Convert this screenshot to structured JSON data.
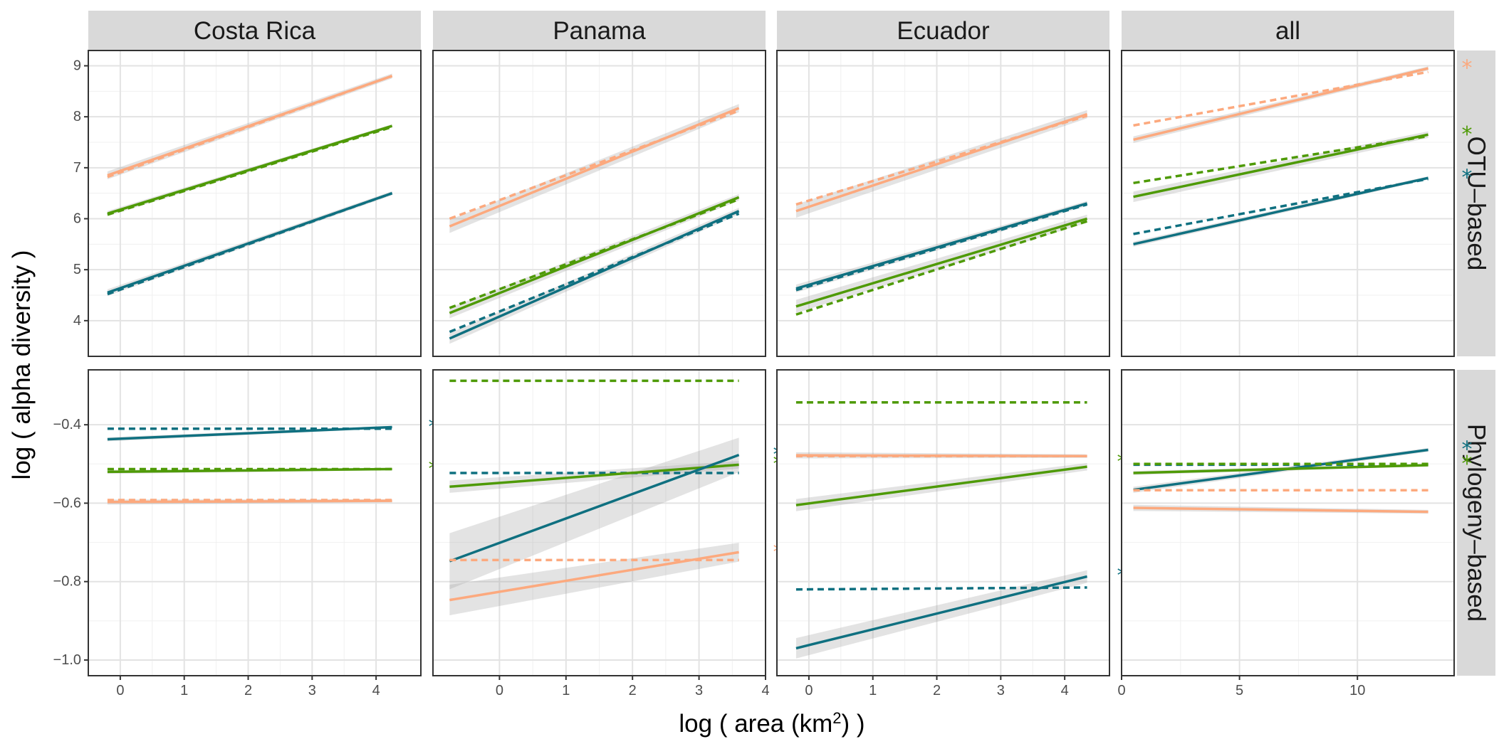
{
  "chart_data": {
    "type": "line",
    "xlabel": "log ( area (km2) )",
    "xlabel_parts": {
      "before": "log ( area (km",
      "sup": "2",
      "after": ") )"
    },
    "ylabel": "log ( alpha diversity )",
    "columns": [
      "Costa Rica",
      "Panama",
      "Ecuador",
      "all"
    ],
    "rows": [
      "OTU–based",
      "Phylogeny–based"
    ],
    "x_ticks": [
      [
        0,
        1,
        2,
        3,
        4
      ],
      [
        0,
        1,
        2,
        3,
        4
      ],
      [
        0,
        1,
        2,
        3,
        4
      ],
      [
        0,
        5,
        10
      ]
    ],
    "x_ranges": [
      [
        -0.5,
        4.7
      ],
      [
        -1.0,
        4.0
      ],
      [
        -0.5,
        4.7
      ],
      [
        0,
        14.1
      ]
    ],
    "y_ticks": [
      [
        4,
        5,
        6,
        7,
        8,
        9
      ],
      [
        -1.0,
        -0.8,
        -0.6,
        -0.4
      ]
    ],
    "y_tick_labels": [
      [
        "4",
        "5",
        "6",
        "7",
        "8",
        "9"
      ],
      [
        "−1.0",
        "−0.8",
        "−0.6",
        "−0.4"
      ]
    ],
    "y_ranges": [
      [
        3.3,
        9.3
      ],
      [
        -1.04,
        -0.26
      ]
    ],
    "grid": true,
    "series_colors": {
      "orange": "#fca97e",
      "green": "#4e9a06",
      "teal": "#0f7080"
    },
    "significance_marker": "*",
    "panels": [
      {
        "row": 0,
        "col": 0,
        "lines": [
          {
            "series": "orange",
            "style": "solid",
            "x": [
              -0.2,
              4.25
            ],
            "y": [
              6.85,
              8.8
            ],
            "ci": 0.06
          },
          {
            "series": "orange",
            "style": "dashed",
            "x": [
              -0.2,
              4.25
            ],
            "y": [
              6.82,
              8.8
            ]
          },
          {
            "series": "green",
            "style": "solid",
            "x": [
              -0.2,
              4.25
            ],
            "y": [
              6.1,
              7.82
            ],
            "ci": 0.04
          },
          {
            "series": "green",
            "style": "dashed",
            "x": [
              -0.2,
              4.25
            ],
            "y": [
              6.08,
              7.8
            ]
          },
          {
            "series": "teal",
            "style": "solid",
            "x": [
              -0.2,
              4.25
            ],
            "y": [
              4.55,
              6.5
            ],
            "ci": 0.05
          },
          {
            "series": "teal",
            "style": "dashed",
            "x": [
              -0.2,
              4.25
            ],
            "y": [
              4.52,
              6.5
            ]
          }
        ],
        "markers": []
      },
      {
        "row": 0,
        "col": 1,
        "lines": [
          {
            "series": "orange",
            "style": "solid",
            "x": [
              -0.75,
              3.6
            ],
            "y": [
              5.85,
              8.17
            ],
            "ci": 0.1
          },
          {
            "series": "orange",
            "style": "dashed",
            "x": [
              -0.75,
              3.6
            ],
            "y": [
              6.0,
              8.12
            ]
          },
          {
            "series": "green",
            "style": "solid",
            "x": [
              -0.75,
              3.6
            ],
            "y": [
              4.15,
              6.42
            ],
            "ci": 0.08
          },
          {
            "series": "green",
            "style": "dashed",
            "x": [
              -0.75,
              3.6
            ],
            "y": [
              4.25,
              6.38
            ]
          },
          {
            "series": "teal",
            "style": "solid",
            "x": [
              -0.75,
              3.6
            ],
            "y": [
              3.65,
              6.15
            ],
            "ci": 0.08
          },
          {
            "series": "teal",
            "style": "dashed",
            "x": [
              -0.75,
              3.6
            ],
            "y": [
              3.78,
              6.1
            ]
          }
        ],
        "markers": []
      },
      {
        "row": 0,
        "col": 2,
        "lines": [
          {
            "series": "orange",
            "style": "solid",
            "x": [
              -0.2,
              4.35
            ],
            "y": [
              6.15,
              8.05
            ],
            "ci": 0.1
          },
          {
            "series": "orange",
            "style": "dashed",
            "x": [
              -0.2,
              4.35
            ],
            "y": [
              6.28,
              8.02
            ]
          },
          {
            "series": "teal",
            "style": "solid",
            "x": [
              -0.2,
              4.35
            ],
            "y": [
              4.63,
              6.3
            ],
            "ci": 0.06
          },
          {
            "series": "teal",
            "style": "dashed",
            "x": [
              -0.2,
              4.35
            ],
            "y": [
              4.6,
              6.28
            ]
          },
          {
            "series": "green",
            "style": "solid",
            "x": [
              -0.2,
              4.35
            ],
            "y": [
              4.28,
              6.0
            ],
            "ci": 0.1
          },
          {
            "series": "green",
            "style": "dashed",
            "x": [
              -0.2,
              4.35
            ],
            "y": [
              4.12,
              5.95
            ]
          }
        ],
        "markers": []
      },
      {
        "row": 0,
        "col": 3,
        "lines": [
          {
            "series": "orange",
            "style": "solid",
            "x": [
              0.5,
              13.0
            ],
            "y": [
              7.55,
              8.95
            ],
            "ci": 0.05
          },
          {
            "series": "orange",
            "style": "dashed",
            "x": [
              0.5,
              13.0
            ],
            "y": [
              7.83,
              8.88
            ]
          },
          {
            "series": "green",
            "style": "solid",
            "x": [
              0.5,
              13.0
            ],
            "y": [
              6.43,
              7.65
            ],
            "ci": 0.08
          },
          {
            "series": "green",
            "style": "dashed",
            "x": [
              0.5,
              13.0
            ],
            "y": [
              6.7,
              7.62
            ]
          },
          {
            "series": "teal",
            "style": "solid",
            "x": [
              0.5,
              13.0
            ],
            "y": [
              5.5,
              6.8
            ],
            "ci": 0.04
          },
          {
            "series": "teal",
            "style": "dashed",
            "x": [
              0.5,
              13.0
            ],
            "y": [
              5.7,
              6.78
            ]
          }
        ],
        "markers": [
          {
            "series": "orange",
            "y": 8.95
          },
          {
            "series": "green",
            "y": 7.65
          },
          {
            "series": "teal",
            "y": 6.8
          }
        ]
      },
      {
        "row": 1,
        "col": 0,
        "lines": [
          {
            "series": "teal",
            "style": "solid",
            "x": [
              -0.2,
              4.25
            ],
            "y": [
              -0.437,
              -0.406
            ],
            "ci": 0.004
          },
          {
            "series": "teal",
            "style": "dashed",
            "x": [
              -0.2,
              4.25
            ],
            "y": [
              -0.41,
              -0.41
            ]
          },
          {
            "series": "green",
            "style": "solid",
            "x": [
              -0.2,
              4.25
            ],
            "y": [
              -0.52,
              -0.513
            ],
            "ci": 0.004
          },
          {
            "series": "green",
            "style": "dashed",
            "x": [
              -0.2,
              4.25
            ],
            "y": [
              -0.513,
              -0.513
            ]
          },
          {
            "series": "orange",
            "style": "solid",
            "x": [
              -0.2,
              4.25
            ],
            "y": [
              -0.597,
              -0.594
            ],
            "ci": 0.005
          },
          {
            "series": "orange",
            "style": "dashed",
            "x": [
              -0.2,
              4.25
            ],
            "y": [
              -0.592,
              -0.592
            ]
          }
        ],
        "markers": [
          {
            "series": "teal",
            "y": -0.406
          },
          {
            "series": "green",
            "y": -0.513
          }
        ]
      },
      {
        "row": 1,
        "col": 1,
        "lines": [
          {
            "series": "green",
            "style": "dashed",
            "x": [
              -0.75,
              3.6
            ],
            "y": [
              -0.288,
              -0.288
            ]
          },
          {
            "series": "teal",
            "style": "dashed",
            "x": [
              -0.75,
              3.6
            ],
            "y": [
              -0.523,
              -0.523
            ]
          },
          {
            "series": "green",
            "style": "solid",
            "x": [
              -0.75,
              3.6
            ],
            "y": [
              -0.558,
              -0.502
            ],
            "ci": 0.012
          },
          {
            "series": "teal",
            "style": "solid",
            "x": [
              -0.75,
              3.6
            ],
            "y": [
              -0.748,
              -0.477
            ],
            "ci": 0.055
          },
          {
            "series": "orange",
            "style": "dashed",
            "x": [
              -0.75,
              3.6
            ],
            "y": [
              -0.745,
              -0.745
            ]
          },
          {
            "series": "orange",
            "style": "solid",
            "x": [
              -0.75,
              3.6
            ],
            "y": [
              -0.847,
              -0.725
            ],
            "ci": 0.03
          }
        ],
        "markers": [
          {
            "series": "teal",
            "y": -0.477
          },
          {
            "series": "green",
            "y": -0.5
          },
          {
            "series": "orange",
            "y": -0.725
          }
        ]
      },
      {
        "row": 1,
        "col": 2,
        "lines": [
          {
            "series": "green",
            "style": "dashed",
            "x": [
              -0.2,
              4.35
            ],
            "y": [
              -0.343,
              -0.343
            ]
          },
          {
            "series": "orange",
            "style": "solid",
            "x": [
              -0.2,
              4.35
            ],
            "y": [
              -0.478,
              -0.48
            ],
            "ci": 0.006
          },
          {
            "series": "orange",
            "style": "dashed",
            "x": [
              -0.2,
              4.35
            ],
            "y": [
              -0.48,
              -0.48
            ]
          },
          {
            "series": "green",
            "style": "solid",
            "x": [
              -0.2,
              4.35
            ],
            "y": [
              -0.605,
              -0.507
            ],
            "ci": 0.012
          },
          {
            "series": "teal",
            "style": "dashed",
            "x": [
              -0.2,
              4.35
            ],
            "y": [
              -0.82,
              -0.815
            ]
          },
          {
            "series": "teal",
            "style": "solid",
            "x": [
              -0.2,
              4.35
            ],
            "y": [
              -0.97,
              -0.787
            ],
            "ci": 0.02
          }
        ],
        "markers": [
          {
            "series": "green",
            "y": -0.495
          },
          {
            "series": "teal",
            "y": -0.785
          }
        ]
      },
      {
        "row": 1,
        "col": 3,
        "lines": [
          {
            "series": "teal",
            "style": "solid",
            "x": [
              0.5,
              13.0
            ],
            "y": [
              -0.566,
              -0.464
            ],
            "ci": 0.006
          },
          {
            "series": "teal",
            "style": "dashed",
            "x": [
              0.5,
              13.0
            ],
            "y": [
              -0.502,
              -0.502
            ]
          },
          {
            "series": "green",
            "style": "solid",
            "x": [
              0.5,
              13.0
            ],
            "y": [
              -0.523,
              -0.503
            ],
            "ci": 0.004
          },
          {
            "series": "green",
            "style": "dashed",
            "x": [
              0.5,
              13.0
            ],
            "y": [
              -0.5,
              -0.5
            ]
          },
          {
            "series": "orange",
            "style": "dashed",
            "x": [
              0.5,
              13.0
            ],
            "y": [
              -0.567,
              -0.567
            ]
          },
          {
            "series": "orange",
            "style": "solid",
            "x": [
              0.5,
              13.0
            ],
            "y": [
              -0.612,
              -0.622
            ],
            "ci": 0.006
          }
        ],
        "markers": [
          {
            "series": "teal",
            "y": -0.463
          },
          {
            "series": "green",
            "y": -0.5
          }
        ]
      }
    ]
  }
}
